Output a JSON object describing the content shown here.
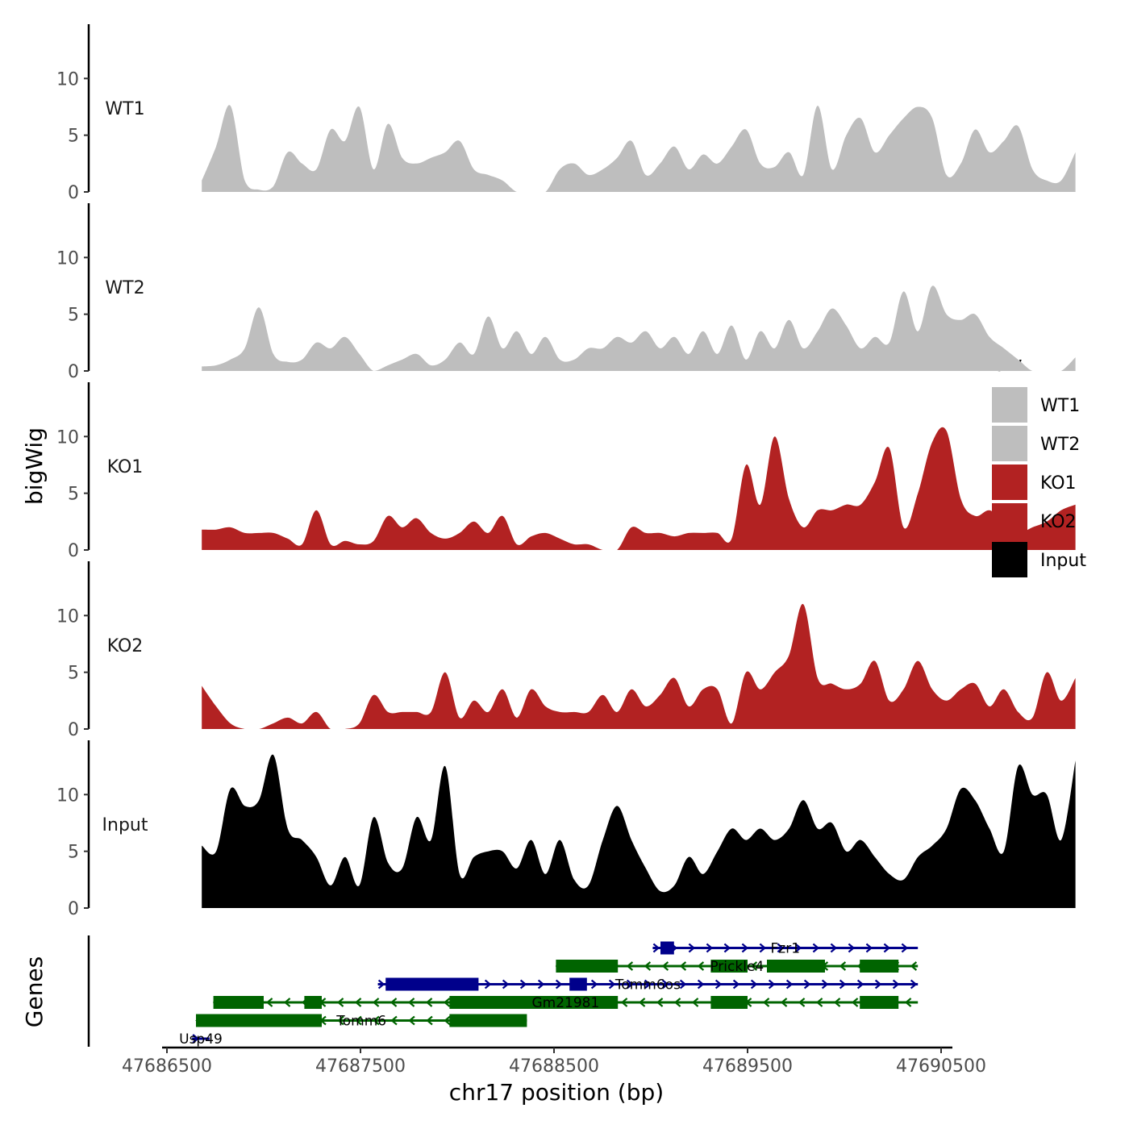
{
  "chart_data": {
    "type": "area",
    "ylabel": "bigWig",
    "xlabel": "chr17 position (bp)",
    "genes_label": "Genes",
    "xlim": [
      47686500,
      47690500
    ],
    "x_ticks": [
      47686500,
      47687500,
      47688500,
      47689500,
      47690500
    ],
    "x_tick_labels": [
      "47686500",
      "47687500",
      "47688500",
      "47689500",
      "47690500"
    ],
    "ylim": [
      0,
      14.5
    ],
    "y_ticks": [
      0,
      5,
      10
    ],
    "y_tick_labels": [
      "0",
      "5",
      "10"
    ],
    "signal_start": 47686680,
    "signal_step": 74,
    "series": [
      {
        "name": "WT1",
        "color": "#bebebe",
        "values": [
          1,
          4,
          7.6,
          1,
          0.2,
          0.5,
          3.5,
          2.5,
          2,
          5.5,
          4.5,
          7.5,
          2,
          6,
          3,
          2.5,
          3,
          3.5,
          4.5,
          2,
          1.5,
          1,
          0,
          0,
          0,
          2,
          2.5,
          1.5,
          2,
          3,
          4.5,
          1.5,
          2.5,
          4,
          2,
          3.3,
          2.5,
          4,
          5.5,
          2.5,
          2.2,
          3.5,
          1.5,
          7.6,
          2,
          5,
          6.5,
          3.5,
          5,
          6.5,
          7.5,
          6.5,
          1.5,
          2.5,
          5.5,
          3.5,
          4.5,
          5.8,
          2,
          1,
          1,
          3.5
        ]
      },
      {
        "name": "WT2",
        "color": "#bebebe",
        "values": [
          0.4,
          0.5,
          1,
          2,
          5.6,
          1.5,
          0.8,
          1,
          2.5,
          2,
          3,
          1.5,
          0,
          0.5,
          1,
          1.5,
          0.5,
          1,
          2.5,
          1.5,
          4.8,
          2,
          3.5,
          1.5,
          3,
          1,
          1,
          2,
          2,
          3,
          2.5,
          3.5,
          2,
          3,
          1.5,
          3.5,
          1.5,
          4,
          1,
          3.5,
          2,
          4.5,
          2,
          3.5,
          5.5,
          4,
          2,
          3,
          2.5,
          7,
          3.5,
          7.5,
          5,
          4.5,
          5,
          3,
          2,
          1,
          0,
          0,
          0,
          1.2
        ]
      },
      {
        "name": "KO1",
        "color": "#b22222",
        "values": [
          1.8,
          1.8,
          2,
          1.5,
          1.5,
          1.5,
          1,
          0.5,
          3.5,
          0.5,
          0.8,
          0.5,
          0.8,
          3,
          2,
          2.8,
          1.5,
          1,
          1.5,
          2.5,
          1.5,
          3,
          0.5,
          1.2,
          1.5,
          1,
          0.5,
          0.5,
          0,
          0,
          2,
          1.5,
          1.5,
          1.2,
          1.5,
          1.5,
          1.5,
          1,
          7.5,
          4,
          10,
          4.5,
          2,
          3.5,
          3.5,
          4,
          4,
          6,
          9,
          2,
          5,
          9.5,
          10.5,
          4.5,
          3,
          3.5,
          2.5,
          1.5,
          2,
          2.5,
          3.5,
          4
        ]
      },
      {
        "name": "KO2",
        "color": "#b22222",
        "values": [
          3.8,
          2,
          0.5,
          0,
          0,
          0.5,
          1,
          0.5,
          1.5,
          0,
          0,
          0.5,
          3,
          1.5,
          1.5,
          1.5,
          1.5,
          5,
          1,
          2.5,
          1.5,
          3.5,
          1,
          3.5,
          2,
          1.5,
          1.5,
          1.5,
          3,
          1.5,
          3.5,
          2,
          3,
          4.5,
          2,
          3.5,
          3.5,
          0.5,
          5,
          3.5,
          5,
          6.5,
          11,
          4.5,
          4,
          3.5,
          4,
          6,
          2.5,
          3.5,
          6,
          3.5,
          2.5,
          3.5,
          4,
          2,
          3.5,
          1.5,
          1,
          5,
          2.5,
          4.5
        ]
      },
      {
        "name": "Input",
        "color": "#000000",
        "values": [
          5.5,
          5,
          10.5,
          9,
          9.5,
          13.5,
          7,
          6,
          4.5,
          2,
          4.5,
          2,
          8,
          4,
          3.5,
          8,
          6,
          12.5,
          3,
          4.5,
          5,
          5,
          3.5,
          6,
          3,
          6,
          2.5,
          2,
          6,
          9,
          6,
          3.5,
          1.5,
          2,
          4.5,
          3,
          5,
          7,
          6,
          7,
          6,
          7,
          9.5,
          7,
          7.5,
          5,
          6,
          4.5,
          3,
          2.5,
          4.5,
          5.5,
          7,
          10.5,
          9.5,
          7,
          5,
          12.5,
          10,
          10,
          6,
          13
        ]
      }
    ],
    "legend": {
      "title": "bw",
      "entries": [
        {
          "label": "WT1",
          "color": "#bebebe"
        },
        {
          "label": "WT2",
          "color": "#bebebe"
        },
        {
          "label": "KO1",
          "color": "#b22222"
        },
        {
          "label": "KO2",
          "color": "#b22222"
        },
        {
          "label": "Input",
          "color": "#000000"
        }
      ],
      "position": "right"
    },
    "gene_tracks": [
      {
        "name": "Fzr1",
        "label": "Fzr1",
        "strand": "+",
        "color": "#00008b",
        "row": 1,
        "start": 47689010,
        "end": 47690380,
        "exons": [
          [
            47689050,
            47689120
          ]
        ]
      },
      {
        "name": "Prickle4",
        "label": "Prickle4",
        "strand": "-",
        "color": "#006400",
        "row": 2,
        "start": 47688510,
        "end": 47690380,
        "exons": [
          [
            47688510,
            47688830
          ],
          [
            47689310,
            47689500
          ],
          [
            47689600,
            47689900
          ],
          [
            47690080,
            47690280
          ]
        ]
      },
      {
        "name": "Tomm6os",
        "label": "Tomm6os",
        "strand": "+",
        "color": "#00008b",
        "row": 3,
        "start": 47687590,
        "end": 47690380,
        "exons": [
          [
            47687630,
            47688110
          ],
          [
            47688580,
            47688670
          ]
        ]
      },
      {
        "name": "Gm21981",
        "label": "Gm21981",
        "strand": "-",
        "color": "#006400",
        "row": 4,
        "start": 47686740,
        "end": 47690380,
        "exons": [
          [
            47686740,
            47687000
          ],
          [
            47687210,
            47687300
          ],
          [
            47687960,
            47688830
          ],
          [
            47689310,
            47689500
          ],
          [
            47690080,
            47690280
          ]
        ]
      },
      {
        "name": "Tomm6",
        "label": "Tomm6",
        "strand": "-",
        "color": "#006400",
        "row": 5,
        "start": 47686650,
        "end": 47688360,
        "exons": [
          [
            47686650,
            47687300
          ],
          [
            47687960,
            47688360
          ]
        ]
      },
      {
        "name": "Usp49",
        "label": "Usp49",
        "strand": "+",
        "color": "#00008b",
        "row": 6,
        "start": 47686630,
        "end": 47686720,
        "exons": []
      }
    ]
  }
}
